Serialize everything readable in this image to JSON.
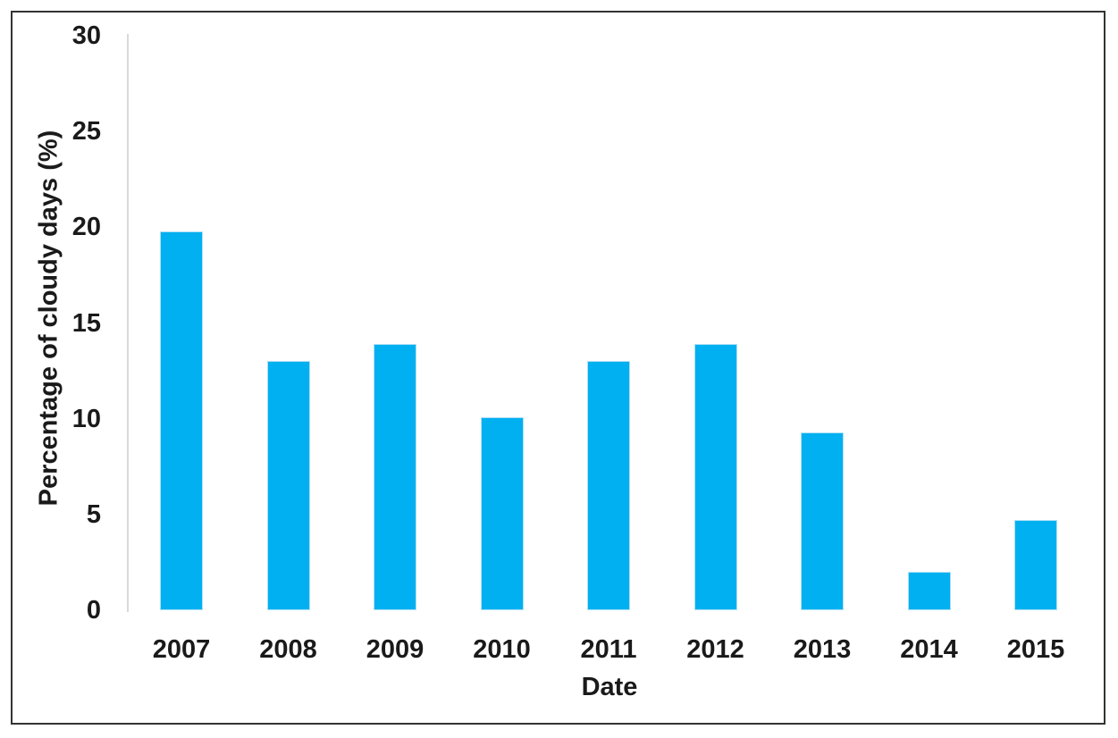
{
  "chart_data": {
    "type": "bar",
    "title": "",
    "categories": [
      "2007",
      "2008",
      "2009",
      "2010",
      "2011",
      "2012",
      "2013",
      "2014",
      "2015"
    ],
    "values": [
      19.8,
      13.0,
      13.9,
      10.1,
      13.0,
      13.9,
      9.3,
      2.0,
      4.7
    ],
    "xlabel": "Date",
    "ylabel": "Percentage of cloudy days (%)",
    "ylim": [
      0,
      30
    ],
    "ytick_step": 5,
    "ytick_labels": [
      "0",
      "5",
      "10",
      "15",
      "20",
      "25",
      "30"
    ],
    "grid": false,
    "legend": null,
    "bar_color": "#00b0f0",
    "bar_edge_color": "#ade0f7",
    "axis_line_color": "#d9d9d9",
    "text_color": "#1a1a1a",
    "frame_border_color": "#333333"
  }
}
